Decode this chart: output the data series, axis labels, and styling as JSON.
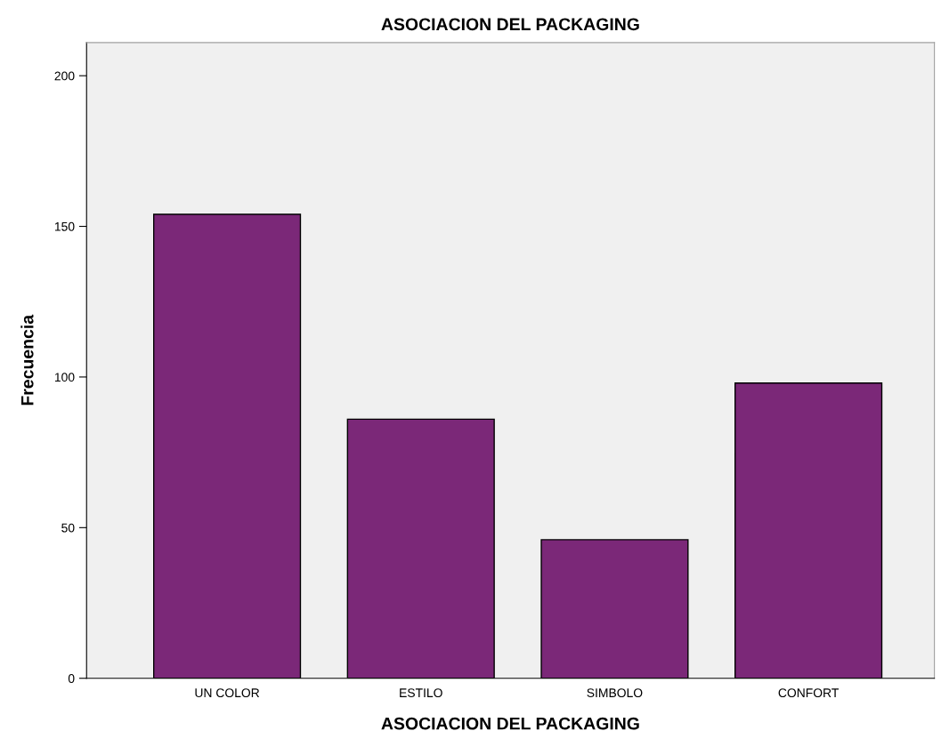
{
  "chart_data": {
    "type": "bar",
    "title": "ASOCIACION DEL PACKAGING",
    "xlabel": "ASOCIACION DEL PACKAGING",
    "ylabel": "Frecuencia",
    "categories": [
      "UN COLOR",
      "ESTILO",
      "SIMBOLO",
      "CONFORT"
    ],
    "values": [
      154,
      86,
      46,
      98
    ],
    "color": "#7b2878",
    "ylim": [
      0,
      211
    ],
    "yticks": [
      0,
      50,
      100,
      150,
      200
    ],
    "grid": false
  }
}
